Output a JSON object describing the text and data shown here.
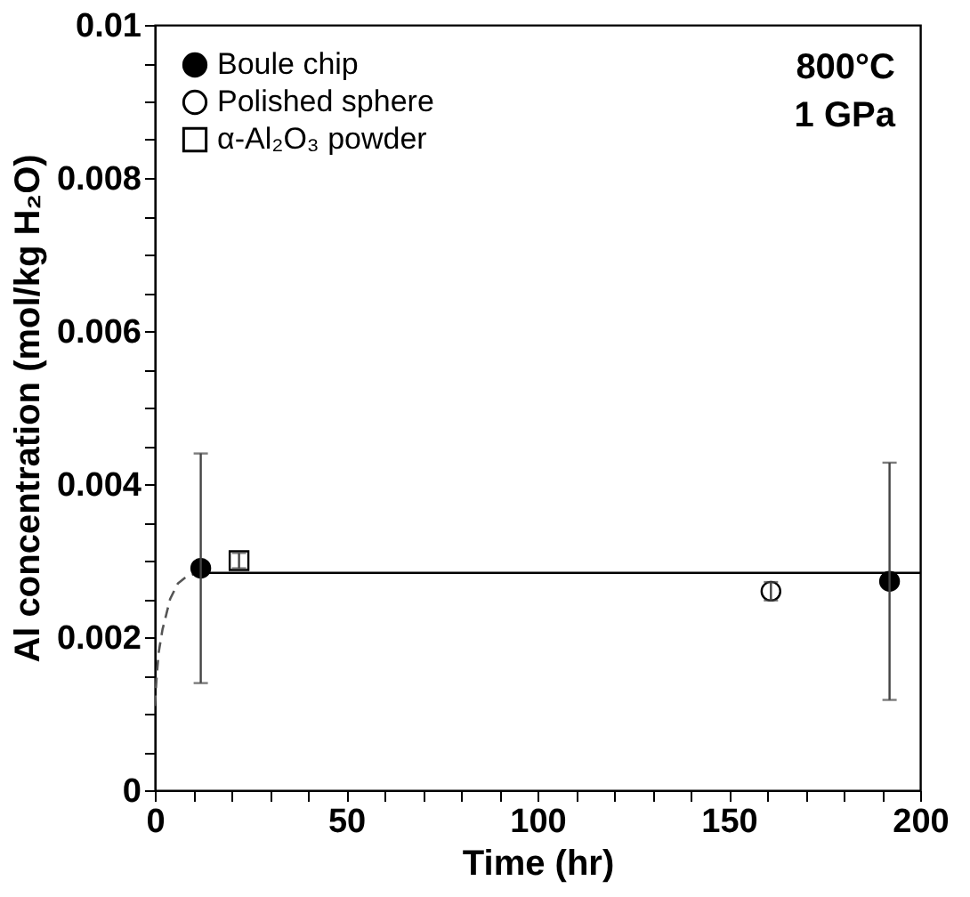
{
  "chart_data": {
    "type": "scatter",
    "xlabel": "Time (hr)",
    "ylabel": "Al concentration (mol/kg H₂O)",
    "annotations": [
      "800°C",
      "1 GPa"
    ],
    "series": [
      {
        "name": "Boule chip",
        "color": "#000000",
        "marker": "circle",
        "x": [
          12,
          192
        ],
        "values": [
          0.0029,
          0.00273
        ],
        "errors": [
          0.0015,
          0.00155
        ]
      },
      {
        "name": "Polished sphere",
        "color": "#000000",
        "marker": "circle",
        "x": [
          161
        ],
        "values": [
          0.0026
        ],
        "errors": [
          0.00012
        ]
      },
      {
        "name": "α-Al₂O₃ powder",
        "color": "#000000",
        "marker": "square",
        "x": [
          22
        ],
        "values": [
          0.003
        ],
        "errors": [
          0.0001
        ]
      },
      {
        "type": "line",
        "color": "#000000",
        "line_style": "solid",
        "marker": "none",
        "x": [
          12,
          200
        ],
        "values": [
          0.00284,
          0.00284
        ]
      },
      {
        "type": "line",
        "color": "#555555",
        "line_style": "dashed",
        "marker": "none",
        "x": [
          0,
          0.5,
          1,
          2,
          3,
          4,
          6,
          8,
          10
        ],
        "values": [
          0.0011,
          0.0015,
          0.0018,
          0.0021,
          0.0023,
          0.0025,
          0.0027,
          0.00278,
          0.00282
        ]
      }
    ],
    "xlim": [
      0,
      200
    ],
    "ylim": [
      0,
      0.01
    ],
    "xticks": [
      0,
      {
        "value": 10,
        "label": null
      },
      {
        "value": 20,
        "label": null
      },
      {
        "value": 30,
        "label": null
      },
      {
        "value": 40,
        "label": null
      },
      50,
      {
        "value": 60,
        "label": null
      },
      {
        "value": 70,
        "label": null
      },
      {
        "value": 80,
        "label": null
      },
      {
        "value": 90,
        "label": null
      },
      100,
      {
        "value": 110,
        "label": null
      },
      {
        "value": 120,
        "label": null
      },
      {
        "value": 130,
        "label": null
      },
      {
        "value": 140,
        "label": null
      },
      150,
      {
        "value": 160,
        "label": null
      },
      {
        "value": 170,
        "label": null
      },
      {
        "value": 180,
        "label": null
      },
      {
        "value": 190,
        "label": null
      },
      200
    ],
    "yticks": [
      0,
      {
        "value": 0.0005,
        "label": null
      },
      {
        "value": 0.001,
        "label": null
      },
      {
        "value": 0.0015,
        "label": null
      },
      0.002,
      {
        "value": 0.0025,
        "label": null
      },
      {
        "value": 0.003,
        "label": null
      },
      {
        "value": 0.0035,
        "label": null
      },
      0.004,
      {
        "value": 0.0045,
        "label": null
      },
      {
        "value": 0.005,
        "label": null
      },
      {
        "value": 0.0055,
        "label": null
      },
      0.006,
      {
        "value": 0.0065,
        "label": null
      },
      {
        "value": 0.007,
        "label": null
      },
      {
        "value": 0.0075,
        "label": null
      },
      0.008,
      {
        "value": 0.0085,
        "label": null
      },
      {
        "value": 0.009,
        "label": null
      },
      {
        "value": 0.0095,
        "label": null
      },
      0.01
    ],
    "grid": false,
    "legend": "top left"
  }
}
